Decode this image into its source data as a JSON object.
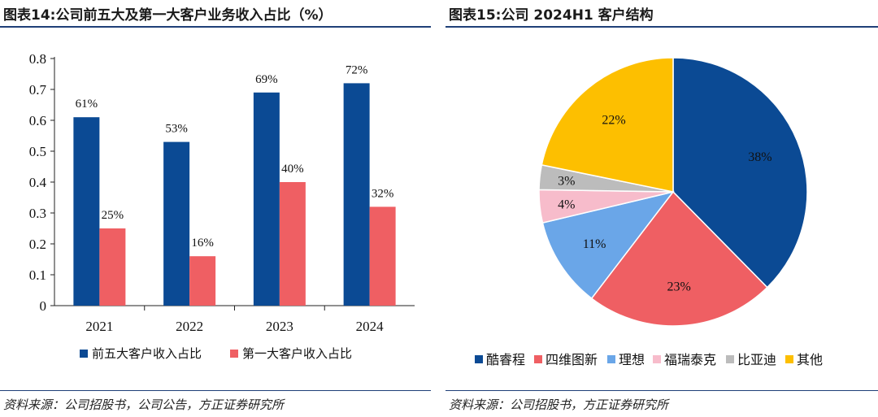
{
  "left": {
    "title": "图表14:公司前五大及第一大客户业务收入占比（%）",
    "source": "资料来源：公司招股书，公司公告，方正证券研究所"
  },
  "right": {
    "title": "图表15:公司 2024H1 客户结构",
    "source": "资料来源：公司招股书，方正证券研究所"
  },
  "chart_data": [
    {
      "type": "bar",
      "categories": [
        "2021",
        "2022",
        "2023",
        "2024"
      ],
      "series": [
        {
          "name": "前五大客户收入占比",
          "values": [
            0.61,
            0.53,
            0.69,
            0.72
          ],
          "labels": [
            "61%",
            "53%",
            "69%",
            "72%"
          ],
          "color": "#0b4a94"
        },
        {
          "name": "第一大客户收入占比",
          "values": [
            0.25,
            0.16,
            0.4,
            0.32
          ],
          "labels": [
            "25%",
            "16%",
            "40%",
            "32%"
          ],
          "color": "#ef5f63"
        }
      ],
      "ylim": [
        0,
        0.8
      ],
      "yticks": [
        "0",
        "0.1",
        "0.2",
        "0.3",
        "0.4",
        "0.5",
        "0.6",
        "0.7",
        "0.8"
      ],
      "legend_position": "bottom"
    },
    {
      "type": "pie",
      "slices": [
        {
          "name": "酷睿程",
          "value": 38,
          "label": "38%",
          "color": "#0b4a94"
        },
        {
          "name": "四维图新",
          "value": 23,
          "label": "23%",
          "color": "#ef5f63"
        },
        {
          "name": "理想",
          "value": 11,
          "label": "11%",
          "color": "#6aa6e8"
        },
        {
          "name": "福瑞泰克",
          "value": 4,
          "label": "4%",
          "color": "#f7bccb"
        },
        {
          "name": "比亚迪",
          "value": 3,
          "label": "3%",
          "color": "#bcbcbc"
        },
        {
          "name": "其他",
          "value": 22,
          "label": "22%",
          "color": "#fdbf00"
        }
      ],
      "legend_position": "bottom"
    }
  ]
}
